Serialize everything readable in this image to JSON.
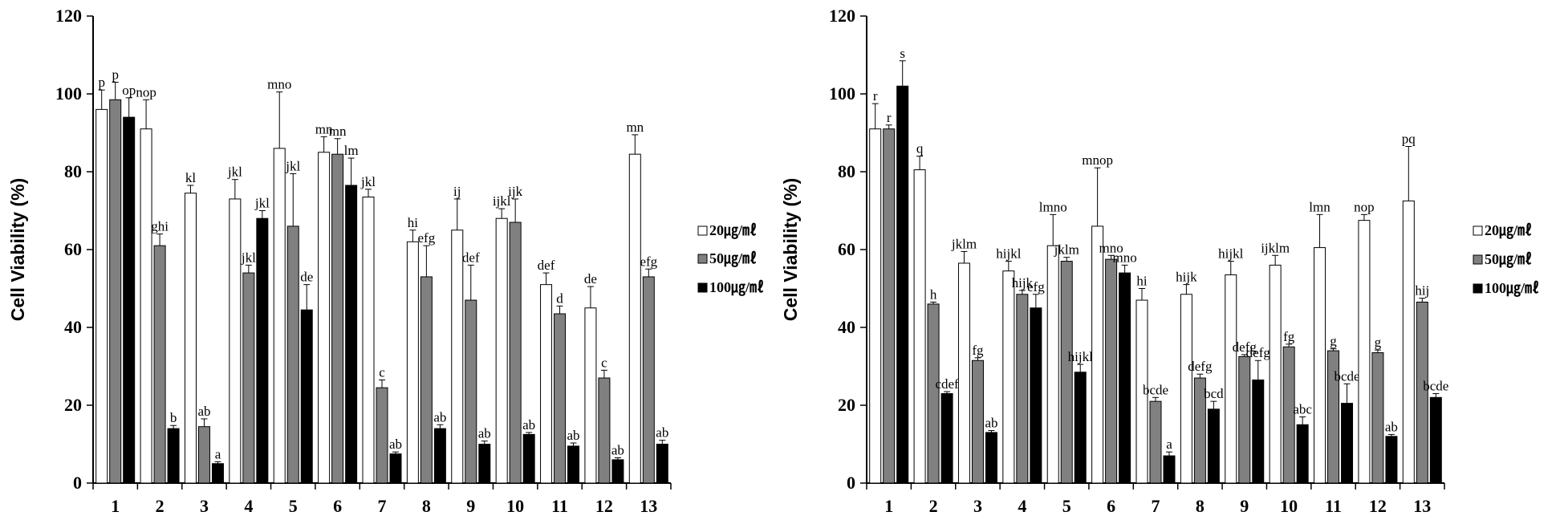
{
  "chart_data": [
    {
      "type": "bar",
      "ylabel": "Cell Viability (%)",
      "ylim": [
        0,
        120
      ],
      "yticks": [
        "0",
        "20",
        "40",
        "60",
        "80",
        "100",
        "120"
      ],
      "categories": [
        "1",
        "2",
        "3",
        "4",
        "5",
        "6",
        "7",
        "8",
        "9",
        "10",
        "11",
        "12",
        "13"
      ],
      "legend": "right",
      "colors": [
        "#ffffff",
        "#808080",
        "#000000"
      ],
      "series": [
        {
          "name": "20㎍/㎖",
          "values": [
            96,
            91,
            74.5,
            73,
            86,
            85,
            73.5,
            62,
            65,
            68,
            51,
            45,
            84.5
          ],
          "errors": [
            5,
            7.5,
            2,
            5,
            14.5,
            4,
            2,
            3,
            8,
            2.5,
            3,
            5.5,
            5
          ],
          "labels": [
            "p",
            "nop",
            "kl",
            "jkl",
            "mno",
            "mn",
            "jkl",
            "hi",
            "ij",
            "ijkl",
            "def",
            "de",
            "mn"
          ]
        },
        {
          "name": "50㎍/㎖",
          "values": [
            98.5,
            61,
            14.5,
            54,
            66,
            84.5,
            24.5,
            53,
            47,
            67,
            43.5,
            27,
            53
          ],
          "errors": [
            4.5,
            3,
            2,
            2,
            13.5,
            4,
            2,
            8,
            9,
            6,
            2,
            2,
            2
          ],
          "labels": [
            "p",
            "ghi",
            "ab",
            "jkl",
            "jkl",
            "mn",
            "c",
            "efg",
            "def",
            "ijk",
            "d",
            "c",
            "efg"
          ]
        },
        {
          "name": "100㎍/㎖",
          "values": [
            94,
            14,
            5,
            68,
            44.5,
            76.5,
            7.5,
            14,
            10,
            12.5,
            9.5,
            6,
            10
          ],
          "errors": [
            5,
            0.8,
            0.5,
            2,
            6.5,
            7,
            0.5,
            1,
            0.8,
            0.5,
            0.8,
            0.5,
            1
          ],
          "labels": [
            "op",
            "b",
            "a",
            "jkl",
            "de",
            "lm",
            "ab",
            "ab",
            "ab",
            "ab",
            "ab",
            "ab",
            "ab"
          ]
        }
      ]
    },
    {
      "type": "bar",
      "ylabel": "Cell Viability (%)",
      "ylim": [
        0,
        120
      ],
      "yticks": [
        "0",
        "20",
        "40",
        "60",
        "80",
        "100",
        "120"
      ],
      "categories": [
        "1",
        "2",
        "3",
        "4",
        "5",
        "6",
        "7",
        "8",
        "9",
        "10",
        "11",
        "12",
        "13"
      ],
      "legend": "right",
      "colors": [
        "#ffffff",
        "#808080",
        "#000000"
      ],
      "series": [
        {
          "name": "20㎍/㎖",
          "values": [
            91,
            80.5,
            56.5,
            54.5,
            61,
            66,
            47,
            48.5,
            53.5,
            56,
            60.5,
            67.5,
            72.5
          ],
          "errors": [
            6.5,
            3.5,
            3,
            2.5,
            8,
            15,
            3,
            2.5,
            3.5,
            2.5,
            8.5,
            1.5,
            14
          ],
          "labels": [
            "r",
            "q",
            "jklm",
            "hijkl",
            "lmno",
            "mnop",
            "hi",
            "hijk",
            "hijkl",
            "ijklm",
            "lmn",
            "nop",
            "pq"
          ]
        },
        {
          "name": "50㎍/㎖",
          "values": [
            91,
            46,
            31.5,
            48.5,
            57,
            57.5,
            21,
            27,
            32.5,
            35,
            34,
            33.5,
            46.5
          ],
          "errors": [
            1,
            0.5,
            0.7,
            1,
            1,
            1,
            1,
            1,
            0.5,
            0.7,
            0.5,
            0.7,
            1
          ],
          "labels": [
            "r",
            "h",
            "fg",
            "hijk",
            "jklm",
            "mno",
            "bcde",
            "defg",
            "defg",
            "fg",
            "g",
            "g",
            "hij"
          ]
        },
        {
          "name": "100㎍/㎖",
          "values": [
            102,
            23,
            13,
            45,
            28.5,
            54,
            7,
            19,
            26.5,
            15,
            20.5,
            12,
            22
          ],
          "errors": [
            6.5,
            0.5,
            0.5,
            3.5,
            2,
            2,
            1,
            2,
            5,
            2,
            5,
            0.5,
            1
          ],
          "labels": [
            "s",
            "cdef",
            "ab",
            "efg",
            "hijkl",
            "mno",
            "a",
            "bcd",
            "defg",
            "abc",
            "bcde",
            "ab",
            "bcde"
          ]
        }
      ]
    }
  ]
}
